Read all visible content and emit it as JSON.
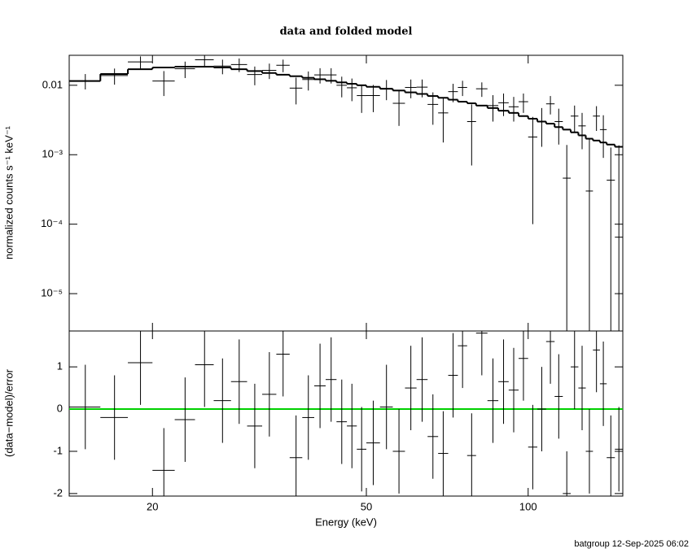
{
  "chart_data": [
    {
      "type": "errorbar-step",
      "title": "data and folded model",
      "ylabel": "normalized counts s⁻¹ keV⁻¹",
      "log_y": true,
      "log_x": true,
      "xlim": [
        14,
        150
      ],
      "ylim": [
        2.9e-06,
        0.027
      ],
      "yticks": [
        0.01,
        {
          "value": 0.001,
          "label": "10⁻³"
        },
        {
          "value": 0.0001,
          "label": "10⁻⁴"
        },
        {
          "value": 1e-05,
          "label": "10⁻⁵"
        }
      ],
      "color": "#000000",
      "x": [
        15,
        17,
        19,
        21,
        23,
        25,
        27,
        29,
        31,
        33,
        35,
        37,
        39,
        41,
        43,
        45,
        47,
        49,
        51.5,
        54.5,
        57.5,
        60.5,
        63.5,
        66.5,
        69.5,
        72.5,
        75.5,
        78.5,
        82,
        86,
        90,
        94,
        98,
        102,
        106,
        110,
        114,
        118,
        122,
        126,
        130,
        134,
        138,
        142.5,
        147.5
      ],
      "xerr": [
        1,
        1,
        1,
        1,
        1,
        1,
        1,
        1,
        1,
        1,
        1,
        1,
        1,
        1,
        1,
        1,
        1,
        1,
        1.5,
        1.5,
        1.5,
        1.5,
        1.5,
        1.5,
        1.5,
        1.5,
        1.5,
        1.5,
        2,
        2,
        2,
        2,
        2,
        2,
        2,
        2,
        2,
        2,
        2,
        2,
        2,
        2,
        2,
        2.5,
        2.5
      ],
      "values": [
        0.0116,
        0.0138,
        0.0217,
        0.0115,
        0.0173,
        0.0233,
        0.0189,
        0.0199,
        0.0143,
        0.0164,
        0.0194,
        0.0091,
        0.0121,
        0.0141,
        0.0141,
        0.01,
        0.0092,
        0.0071,
        0.0071,
        0.009,
        0.0055,
        0.0093,
        0.0094,
        0.0053,
        0.004,
        0.0081,
        0.0093,
        0.003,
        0.0089,
        0.0051,
        0.0056,
        0.0049,
        0.0058,
        0.0018,
        0.003,
        0.0054,
        0.003,
        0.00046,
        0.0036,
        0.0026,
        0.0003,
        0.0036,
        0.0023,
        0.00043,
        6.5e-05
      ],
      "errors": [
        0.0029,
        0.0036,
        0.0043,
        0.0045,
        0.0046,
        0.0046,
        0.0045,
        0.0044,
        0.0043,
        0.0041,
        0.004,
        0.0038,
        0.0037,
        0.0035,
        0.0035,
        0.0033,
        0.0033,
        0.0031,
        0.003,
        0.0029,
        0.0029,
        0.0028,
        0.0027,
        0.0026,
        0.0025,
        0.0024,
        0.0023,
        0.0023,
        0.0021,
        0.0021,
        0.002,
        0.0019,
        0.0018,
        0.0017,
        0.0017,
        0.0016,
        0.0016,
        0.00092,
        0.0015,
        0.0014,
        0.0014,
        0.0014,
        0.0014,
        0.00084,
        0.0013
      ],
      "model": [
        0.0115,
        0.0145,
        0.017,
        0.018,
        0.0185,
        0.0185,
        0.018,
        0.017,
        0.016,
        0.015,
        0.0142,
        0.0135,
        0.0128,
        0.0122,
        0.0116,
        0.011,
        0.0105,
        0.01,
        0.0095,
        0.0089,
        0.0084,
        0.0079,
        0.0075,
        0.007,
        0.0066,
        0.0062,
        0.0058,
        0.0055,
        0.0051,
        0.0047,
        0.0043,
        0.004,
        0.0036,
        0.0033,
        0.003,
        0.0028,
        0.0025,
        0.0023,
        0.0021,
        0.0019,
        0.0017,
        0.0016,
        0.0015,
        0.0014,
        0.0013
      ]
    },
    {
      "type": "errorbar",
      "xlabel": "Energy (keV)",
      "ylabel": "(data−model)/error",
      "log_x": true,
      "xlim": [
        14,
        150
      ],
      "xticks": [
        20,
        50,
        100
      ],
      "ylim": [
        -2.06,
        1.85
      ],
      "yticks": [
        -2,
        -1,
        0,
        1
      ],
      "color": "#000000",
      "reference": {
        "value": 0,
        "color": "#00d000"
      },
      "values": [
        0.05,
        -0.2,
        1.1,
        -1.45,
        -0.25,
        1.05,
        0.2,
        0.65,
        -0.4,
        0.35,
        1.3,
        -1.15,
        -0.2,
        0.55,
        0.7,
        -0.3,
        -0.4,
        -0.95,
        -0.8,
        0.05,
        -1.0,
        0.5,
        0.7,
        -0.65,
        -1.05,
        0.8,
        1.5,
        -1.1,
        1.8,
        0.2,
        0.65,
        0.45,
        1.2,
        -0.9,
        0,
        1.6,
        0.3,
        -2.0,
        1.0,
        0.5,
        -1.0,
        1.4,
        0.6,
        -1.15,
        -0.95
      ],
      "errors": [
        1,
        1,
        1,
        1,
        1,
        1,
        1,
        1,
        1,
        1,
        1,
        1,
        1,
        1,
        1,
        1,
        1,
        1,
        1,
        1,
        1,
        1,
        1,
        1,
        1,
        1,
        1,
        1,
        1,
        1,
        1,
        1,
        1,
        1,
        1,
        1,
        1,
        1,
        1,
        1,
        1,
        1,
        1,
        1,
        1
      ]
    }
  ],
  "footer": "batgroup 12-Sep-2025 06:02"
}
